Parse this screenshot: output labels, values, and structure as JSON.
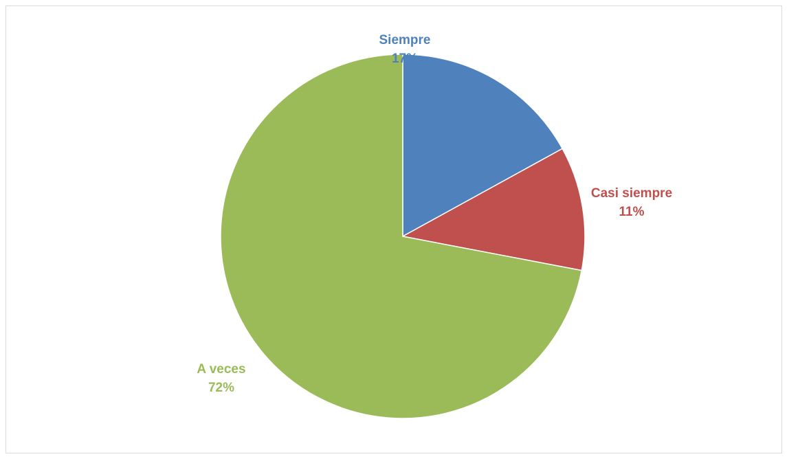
{
  "chart_data": {
    "type": "pie",
    "title": "",
    "slices": [
      {
        "label": "Siempre",
        "value": 17,
        "value_label": "17%",
        "color": "#4F81BD"
      },
      {
        "label": "Casi siempre",
        "value": 11,
        "value_label": "11%",
        "color": "#C0504D"
      },
      {
        "label": "A veces",
        "value": 72,
        "value_label": "72%",
        "color": "#9BBB59"
      }
    ],
    "start_angle": "12 o'clock",
    "direction": "clockwise",
    "legend": "none"
  }
}
